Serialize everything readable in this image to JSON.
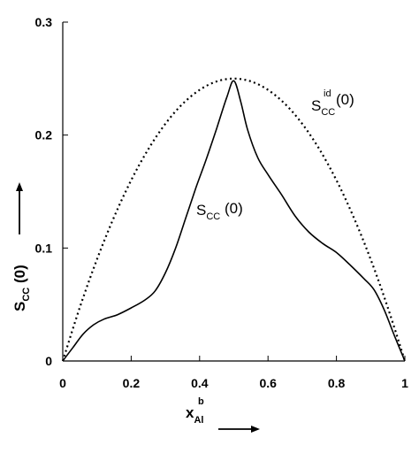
{
  "chart_data": {
    "type": "line",
    "xlim": [
      0,
      1
    ],
    "ylim": [
      0,
      0.3
    ],
    "xticks": [
      0,
      0.2,
      0.4,
      0.6,
      0.8,
      1
    ],
    "xtick_labels": [
      "0",
      "0.2",
      "0.4",
      "0.6",
      "0.8",
      "1"
    ],
    "yticks": [
      0,
      0.1,
      0.2,
      0.3
    ],
    "ytick_labels": [
      "0",
      "0.1",
      "0.2",
      "0.3"
    ],
    "grid": false,
    "legend": "none",
    "xlabel": {
      "main": "x",
      "sub": "Al",
      "sup": "b"
    },
    "ylabel": {
      "main": "S",
      "sub": "CC",
      "rest": " (0)"
    },
    "series": [
      {
        "label_main": "S",
        "label_sub": "CC",
        "label_sup": "id",
        "label_rest": " (0)",
        "style": "dotted",
        "color": "#000000",
        "x": [
          0,
          0.05,
          0.1,
          0.15,
          0.2,
          0.25,
          0.3,
          0.35,
          0.4,
          0.45,
          0.5,
          0.55,
          0.6,
          0.65,
          0.7,
          0.75,
          0.8,
          0.85,
          0.9,
          0.95,
          1
        ],
        "y": [
          0,
          0.0475,
          0.09,
          0.1275,
          0.16,
          0.1875,
          0.21,
          0.2275,
          0.24,
          0.2475,
          0.25,
          0.2475,
          0.24,
          0.2275,
          0.21,
          0.1875,
          0.16,
          0.1275,
          0.09,
          0.0475,
          0
        ]
      },
      {
        "label_main": "S",
        "label_sub": "CC",
        "label_rest": " (0)",
        "style": "solid",
        "color": "#000000",
        "x": [
          0,
          0.03,
          0.06,
          0.09,
          0.12,
          0.16,
          0.2,
          0.24,
          0.27,
          0.3,
          0.33,
          0.36,
          0.39,
          0.42,
          0.45,
          0.48,
          0.5,
          0.52,
          0.54,
          0.57,
          0.6,
          0.64,
          0.68,
          0.72,
          0.76,
          0.8,
          0.84,
          0.88,
          0.91,
          0.94,
          0.97,
          1
        ],
        "y": [
          0,
          0.012,
          0.024,
          0.032,
          0.037,
          0.041,
          0.047,
          0.054,
          0.062,
          0.078,
          0.1,
          0.127,
          0.154,
          0.179,
          0.206,
          0.234,
          0.248,
          0.23,
          0.205,
          0.18,
          0.165,
          0.147,
          0.128,
          0.114,
          0.104,
          0.096,
          0.085,
          0.073,
          0.063,
          0.045,
          0.022,
          0
        ]
      }
    ]
  }
}
